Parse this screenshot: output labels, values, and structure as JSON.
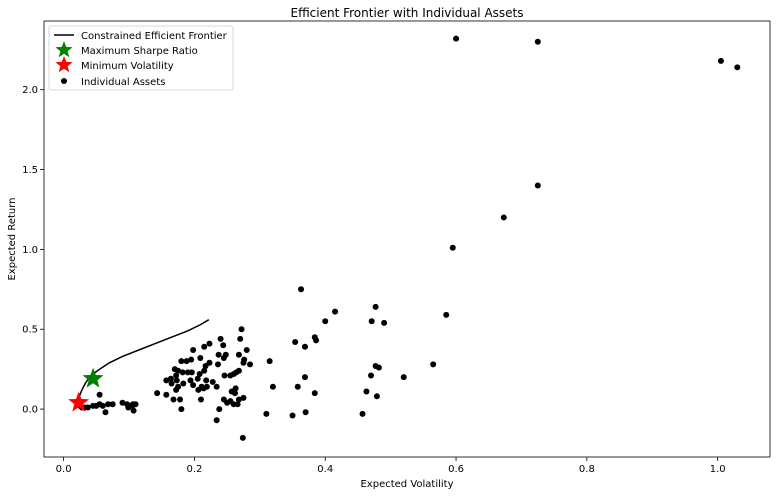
{
  "chart_data": {
    "type": "scatter",
    "title": "Efficient Frontier with Individual Assets",
    "xlabel": "Expected Volatility",
    "ylabel": "Expected Return",
    "xlim": [
      -0.03,
      1.08
    ],
    "ylim": [
      -0.3,
      2.43
    ],
    "xticks": [
      0.0,
      0.2,
      0.4,
      0.6,
      0.8,
      1.0
    ],
    "xtick_labels": [
      "0.0",
      "0.2",
      "0.4",
      "0.6",
      "0.8",
      "1.0"
    ],
    "yticks": [
      0.0,
      0.5,
      1.0,
      1.5,
      2.0
    ],
    "ytick_labels": [
      "0.0",
      "0.5",
      "1.0",
      "1.5",
      "2.0"
    ],
    "legend_position": "top-left",
    "grid": false,
    "series": [
      {
        "name": "Constrained Efficient Frontier",
        "kind": "line",
        "color": "#000000",
        "x": [
          0.021,
          0.024,
          0.028,
          0.033,
          0.038,
          0.045,
          0.055,
          0.07,
          0.09,
          0.115,
          0.14,
          0.165,
          0.19,
          0.21,
          0.222
        ],
        "y": [
          0.04,
          0.08,
          0.12,
          0.16,
          0.19,
          0.22,
          0.25,
          0.29,
          0.33,
          0.37,
          0.41,
          0.45,
          0.49,
          0.53,
          0.56
        ]
      },
      {
        "name": "Maximum Sharpe Ratio",
        "kind": "marker",
        "marker": "star",
        "color": "#008000",
        "x": [
          0.045
        ],
        "y": [
          0.19
        ]
      },
      {
        "name": "Minimum Volatility",
        "kind": "marker",
        "marker": "star",
        "color": "#ff0000",
        "x": [
          0.023
        ],
        "y": [
          0.04
        ]
      },
      {
        "name": "Individual Assets",
        "kind": "scatter",
        "marker": "circle",
        "color": "#000000",
        "points": [
          [
            0.6,
            2.32
          ],
          [
            0.725,
            2.3
          ],
          [
            1.005,
            2.18
          ],
          [
            1.03,
            2.14
          ],
          [
            0.725,
            1.4
          ],
          [
            0.673,
            1.2
          ],
          [
            0.595,
            1.01
          ],
          [
            0.363,
            0.75
          ],
          [
            0.477,
            0.64
          ],
          [
            0.415,
            0.61
          ],
          [
            0.585,
            0.59
          ],
          [
            0.4,
            0.55
          ],
          [
            0.471,
            0.55
          ],
          [
            0.49,
            0.54
          ],
          [
            0.272,
            0.5
          ],
          [
            0.384,
            0.45
          ],
          [
            0.386,
            0.43
          ],
          [
            0.27,
            0.44
          ],
          [
            0.24,
            0.44
          ],
          [
            0.354,
            0.42
          ],
          [
            0.223,
            0.41
          ],
          [
            0.215,
            0.39
          ],
          [
            0.244,
            0.4
          ],
          [
            0.369,
            0.39
          ],
          [
            0.198,
            0.37
          ],
          [
            0.28,
            0.37
          ],
          [
            0.248,
            0.34
          ],
          [
            0.268,
            0.34
          ],
          [
            0.237,
            0.34
          ],
          [
            0.245,
            0.32
          ],
          [
            0.209,
            0.32
          ],
          [
            0.195,
            0.31
          ],
          [
            0.188,
            0.3
          ],
          [
            0.18,
            0.3
          ],
          [
            0.276,
            0.31
          ],
          [
            0.315,
            0.3
          ],
          [
            0.275,
            0.29
          ],
          [
            0.285,
            0.28
          ],
          [
            0.223,
            0.29
          ],
          [
            0.236,
            0.28
          ],
          [
            0.217,
            0.27
          ],
          [
            0.565,
            0.28
          ],
          [
            0.477,
            0.27
          ],
          [
            0.482,
            0.26
          ],
          [
            0.17,
            0.25
          ],
          [
            0.175,
            0.24
          ],
          [
            0.182,
            0.23
          ],
          [
            0.19,
            0.23
          ],
          [
            0.196,
            0.23
          ],
          [
            0.215,
            0.24
          ],
          [
            0.264,
            0.23
          ],
          [
            0.268,
            0.24
          ],
          [
            0.208,
            0.22
          ],
          [
            0.172,
            0.21
          ],
          [
            0.255,
            0.21
          ],
          [
            0.26,
            0.22
          ],
          [
            0.246,
            0.21
          ],
          [
            0.47,
            0.21
          ],
          [
            0.52,
            0.2
          ],
          [
            0.369,
            0.2
          ],
          [
            0.157,
            0.18
          ],
          [
            0.164,
            0.19
          ],
          [
            0.173,
            0.18
          ],
          [
            0.205,
            0.19
          ],
          [
            0.194,
            0.18
          ],
          [
            0.218,
            0.18
          ],
          [
            0.228,
            0.17
          ],
          [
            0.165,
            0.16
          ],
          [
            0.183,
            0.16
          ],
          [
            0.198,
            0.15
          ],
          [
            0.211,
            0.14
          ],
          [
            0.219,
            0.14
          ],
          [
            0.234,
            0.14
          ],
          [
            0.175,
            0.14
          ],
          [
            0.214,
            0.13
          ],
          [
            0.263,
            0.13
          ],
          [
            0.32,
            0.14
          ],
          [
            0.358,
            0.14
          ],
          [
            0.172,
            0.12
          ],
          [
            0.206,
            0.12
          ],
          [
            0.257,
            0.11
          ],
          [
            0.262,
            0.1
          ],
          [
            0.463,
            0.11
          ],
          [
            0.143,
            0.1
          ],
          [
            0.157,
            0.09
          ],
          [
            0.384,
            0.1
          ],
          [
            0.479,
            0.08
          ],
          [
            0.055,
            0.09
          ],
          [
            0.168,
            0.06
          ],
          [
            0.178,
            0.06
          ],
          [
            0.21,
            0.06
          ],
          [
            0.245,
            0.06
          ],
          [
            0.268,
            0.06
          ],
          [
            0.255,
            0.05
          ],
          [
            0.25,
            0.04
          ],
          [
            0.275,
            0.07
          ],
          [
            0.26,
            0.03
          ],
          [
            0.266,
            0.03
          ],
          [
            0.09,
            0.04
          ],
          [
            0.097,
            0.03
          ],
          [
            0.068,
            0.03
          ],
          [
            0.075,
            0.03
          ],
          [
            0.055,
            0.03
          ],
          [
            0.045,
            0.02
          ],
          [
            0.037,
            0.01
          ],
          [
            0.05,
            0.02
          ],
          [
            0.06,
            0.02
          ],
          [
            0.032,
            0.01
          ],
          [
            0.028,
            0.01
          ],
          [
            0.025,
            0.02
          ],
          [
            0.1,
            0.02
          ],
          [
            0.106,
            0.03
          ],
          [
            0.11,
            0.03
          ],
          [
            0.105,
            0.02
          ],
          [
            0.099,
            0.01
          ],
          [
            0.238,
            0.0
          ],
          [
            0.18,
            0.0
          ],
          [
            0.107,
            -0.01
          ],
          [
            0.064,
            -0.02
          ],
          [
            0.37,
            -0.02
          ],
          [
            0.31,
            -0.03
          ],
          [
            0.35,
            -0.04
          ],
          [
            0.457,
            -0.03
          ],
          [
            0.234,
            -0.07
          ],
          [
            0.274,
            -0.18
          ]
        ]
      }
    ]
  }
}
